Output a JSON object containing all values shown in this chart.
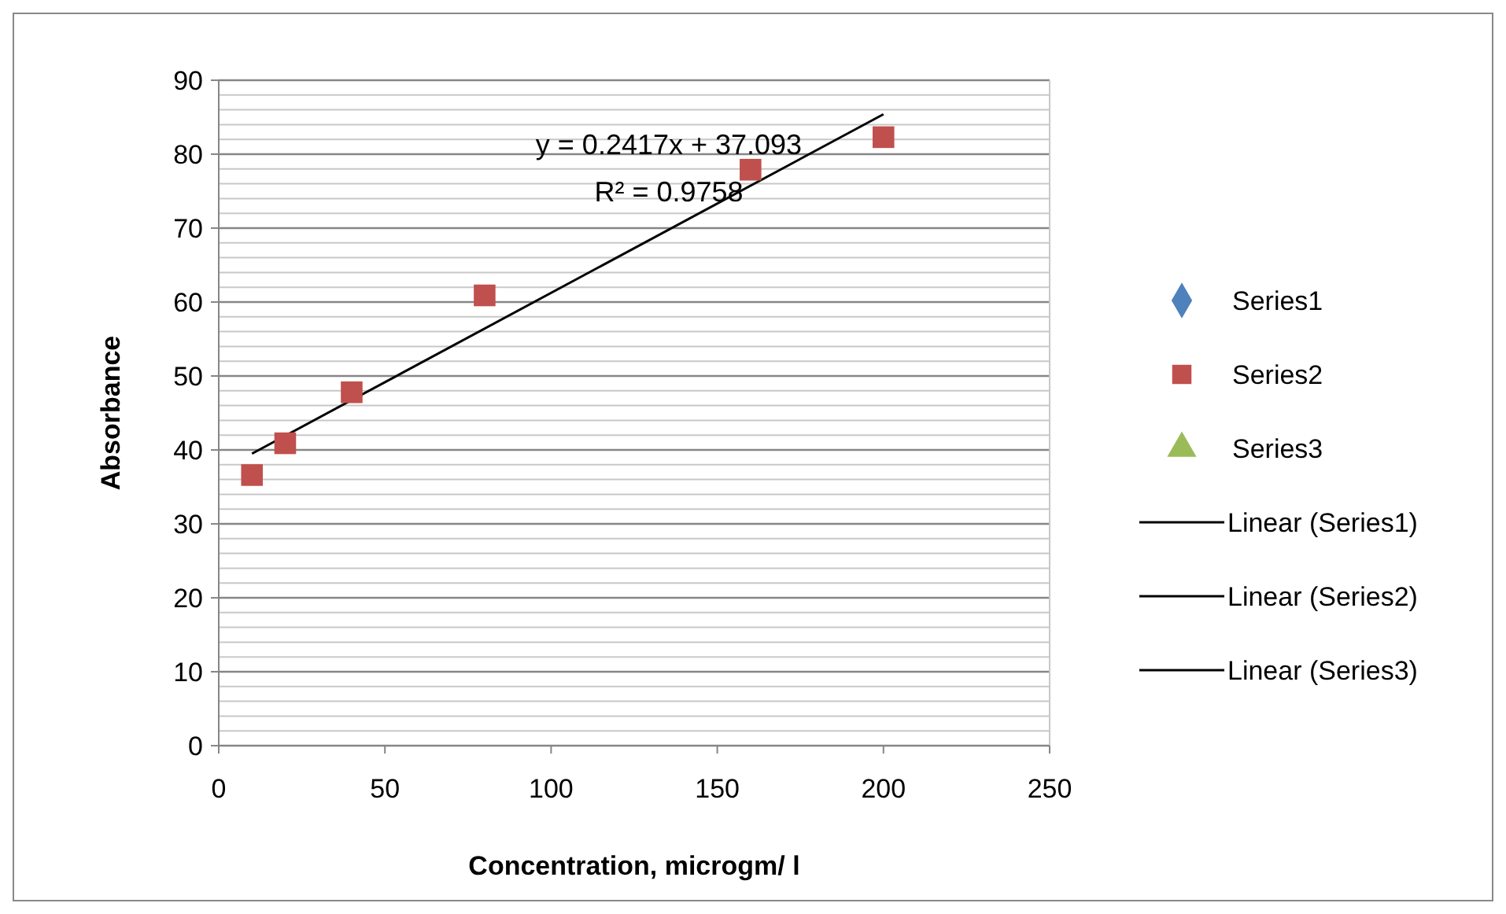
{
  "chart_data": {
    "type": "scatter",
    "xlabel": "Concentration, microgm/ l",
    "ylabel": "Absorbance",
    "x": [
      10,
      20,
      40,
      80,
      160,
      200
    ],
    "xlim": [
      0,
      250
    ],
    "xticks": [
      0,
      50,
      100,
      150,
      200,
      250
    ],
    "ylim": [
      0,
      90
    ],
    "yticks": [
      0,
      {
        "value": 2,
        "label": null
      },
      {
        "value": 4,
        "label": null
      },
      {
        "value": 6,
        "label": null
      },
      {
        "value": 8,
        "label": null
      },
      10,
      {
        "value": 12,
        "label": null
      },
      {
        "value": 14,
        "label": null
      },
      {
        "value": 16,
        "label": null
      },
      {
        "value": 18,
        "label": null
      },
      20,
      {
        "value": 22,
        "label": null
      },
      {
        "value": 24,
        "label": null
      },
      {
        "value": 26,
        "label": null
      },
      {
        "value": 28,
        "label": null
      },
      30,
      {
        "value": 32,
        "label": null
      },
      {
        "value": 34,
        "label": null
      },
      {
        "value": 36,
        "label": null
      },
      {
        "value": 38,
        "label": null
      },
      40,
      {
        "value": 42,
        "label": null
      },
      {
        "value": 44,
        "label": null
      },
      {
        "value": 46,
        "label": null
      },
      {
        "value": 48,
        "label": null
      },
      50,
      {
        "value": 52,
        "label": null
      },
      {
        "value": 54,
        "label": null
      },
      {
        "value": 56,
        "label": null
      },
      {
        "value": 58,
        "label": null
      },
      60,
      {
        "value": 62,
        "label": null
      },
      {
        "value": 64,
        "label": null
      },
      {
        "value": 66,
        "label": null
      },
      {
        "value": 68,
        "label": null
      },
      70,
      {
        "value": 72,
        "label": null
      },
      {
        "value": 74,
        "label": null
      },
      {
        "value": 76,
        "label": null
      },
      {
        "value": 78,
        "label": null
      },
      80,
      {
        "value": 82,
        "label": null
      },
      {
        "value": 84,
        "label": null
      },
      {
        "value": 86,
        "label": null
      },
      {
        "value": 88,
        "label": null
      },
      90
    ],
    "grid": "y",
    "legend": "right",
    "series": [
      {
        "name": "Series1",
        "color": "#4f81bd",
        "marker": "diamond",
        "values": [
          null,
          null,
          null,
          null,
          null,
          null
        ]
      },
      {
        "name": "Series2",
        "color": "#c0504d",
        "marker": "square",
        "values": [
          36.6,
          40.9,
          47.8,
          60.9,
          77.9,
          82.3
        ]
      },
      {
        "name": "Series3",
        "color": "#9bbb59",
        "marker": "triangle",
        "values": [
          null,
          null,
          null,
          null,
          null,
          null
        ]
      },
      {
        "name": "Linear (Series1)",
        "type": "line",
        "color": "#000000",
        "marker": "none",
        "values": [
          null,
          null,
          null,
          null,
          null,
          null
        ]
      },
      {
        "name": "Linear (Series2)",
        "type": "line",
        "color": "#000000",
        "marker": "none",
        "x": [
          10,
          200
        ],
        "values": [
          39.5,
          85.4
        ]
      },
      {
        "name": "Linear (Series3)",
        "type": "line",
        "color": "#000000",
        "marker": "none",
        "values": [
          null,
          null,
          null,
          null,
          null,
          null
        ]
      }
    ],
    "annotations": [
      "y = 0.2417x + 37.093",
      "R² = 0.9758"
    ]
  }
}
